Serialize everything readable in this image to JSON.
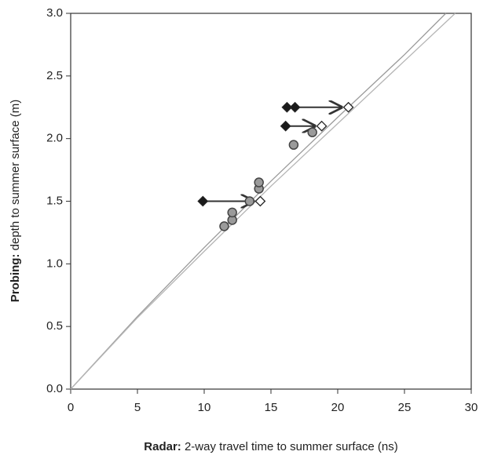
{
  "chart_data": {
    "type": "scatter",
    "x_label_bold": "Radar:",
    "x_label": "2-way travel time to summer surface (ns)",
    "y_label_bold": "Probing:",
    "y_label": "depth to summer surface (m)",
    "xlim": [
      0,
      30
    ],
    "xticks": [
      0,
      5,
      10,
      15,
      20,
      25,
      30
    ],
    "ylim": [
      0,
      3
    ],
    "yticks": [
      {
        "value": 0,
        "label": "0.0"
      },
      0.5,
      {
        "value": 1,
        "label": "1.0"
      },
      1.5,
      {
        "value": 2,
        "label": "2.0"
      },
      2.5,
      {
        "value": 3,
        "label": "3.0"
      }
    ],
    "lines": [
      {
        "color": "#9a9a9a",
        "x": [
          0,
          5,
          10,
          15,
          20,
          25,
          28.1
        ],
        "values": [
          0,
          0.58,
          1.13,
          1.66,
          2.17,
          2.67,
          3.0
        ]
      },
      {
        "color": "#b5b5b5",
        "x": [
          0,
          5,
          10,
          15,
          20,
          25,
          28.8
        ],
        "values": [
          0,
          0.57,
          1.1,
          1.62,
          2.12,
          2.62,
          3.0
        ]
      }
    ],
    "series": [
      {
        "marker": "circle",
        "color": "#9a9a9a",
        "x": [
          11.5,
          12.1,
          12.1,
          13.4,
          14.1,
          14.1,
          16.7,
          18.1
        ],
        "values": [
          1.3,
          1.35,
          1.41,
          1.5,
          1.6,
          1.65,
          1.95,
          2.05
        ]
      },
      {
        "marker": "diamond",
        "color": "#1a1a1a",
        "x": [
          9.9,
          16.2,
          16.8,
          16.1
        ],
        "values": [
          1.5,
          2.25,
          2.25,
          2.1
        ]
      },
      {
        "marker": "diamond",
        "color": "#ffffff",
        "x": [
          14.2,
          20.8,
          18.8
        ],
        "values": [
          1.5,
          2.25,
          2.1
        ]
      }
    ]
  }
}
